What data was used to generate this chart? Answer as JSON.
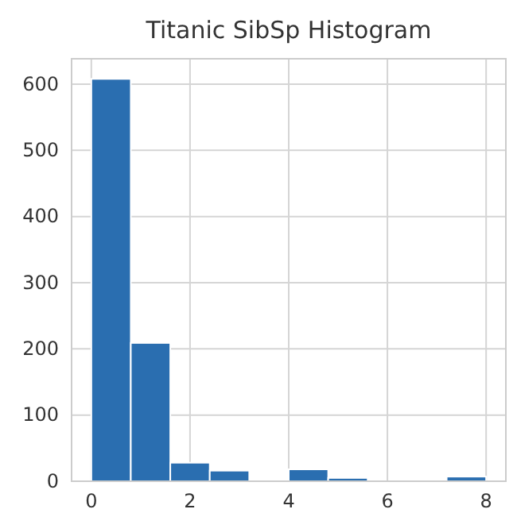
{
  "chart_data": {
    "type": "histogram",
    "title": "Titanic SibSp Histogram",
    "bins": [
      0,
      0.8,
      1.6,
      2.4,
      3.2,
      4.0,
      4.8,
      5.6,
      6.4,
      7.2,
      8.0
    ],
    "values": [
      608,
      209,
      28,
      16,
      0,
      18,
      5,
      0,
      0,
      7
    ],
    "color": "#2a6eb0",
    "xlim": [
      -0.4,
      8.4
    ],
    "xticks": [
      0,
      2,
      4,
      6,
      8
    ],
    "ylim": [
      0,
      638.4
    ],
    "yticks": [
      0,
      100,
      200,
      300,
      400,
      500,
      600
    ],
    "grid": true
  }
}
